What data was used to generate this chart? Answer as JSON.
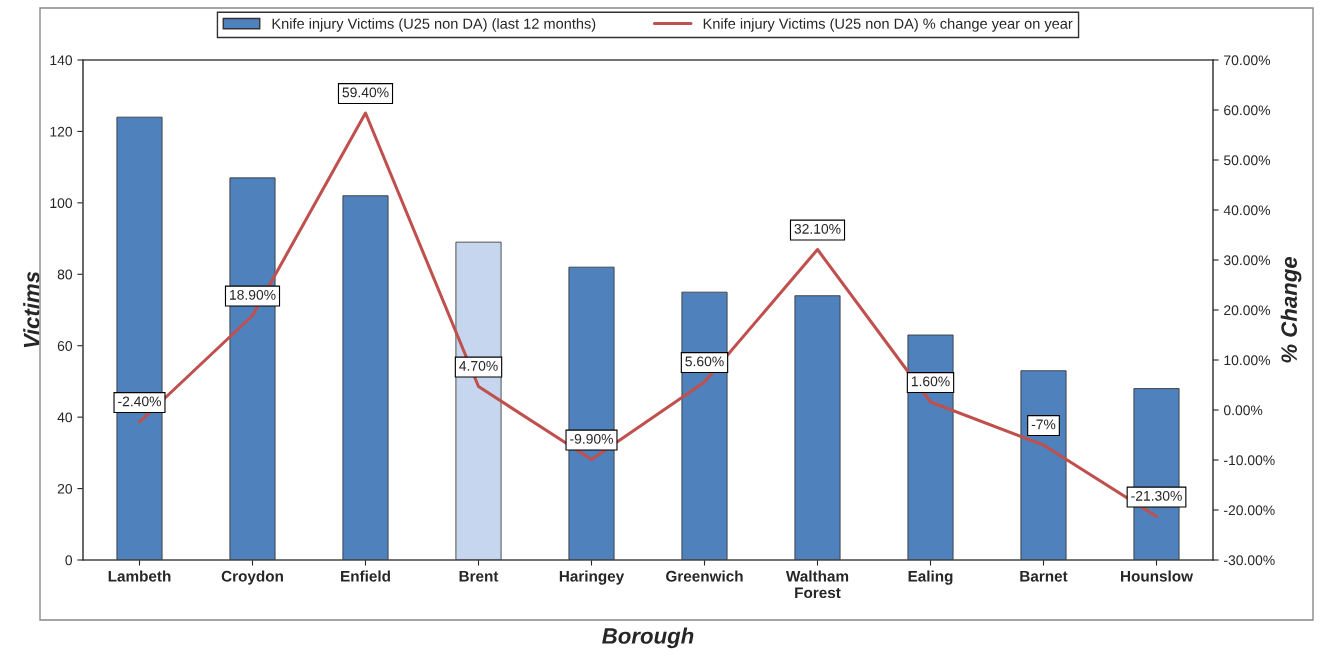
{
  "chart_data": {
    "type": "bar",
    "xlabel": "Borough",
    "ylabel": "Victims",
    "y2label": "% Change",
    "categories": [
      "Lambeth",
      "Croydon",
      "Enfield",
      "Brent",
      "Haringey",
      "Greenwich",
      "Waltham\nForest",
      "Ealing",
      "Barnet",
      "Hounslow"
    ],
    "series": [
      {
        "name": "Knife injury Victims (U25 non DA) (last 12 months)",
        "color": "#4f81bd",
        "colors": [
          "#4f81bd",
          "#4f81bd",
          "#4f81bd",
          "#c6d6ef",
          "#4f81bd",
          "#4f81bd",
          "#4f81bd",
          "#4f81bd",
          "#4f81bd",
          "#4f81bd"
        ],
        "values": [
          124,
          107,
          102,
          89,
          82,
          75,
          74,
          63,
          53,
          48
        ]
      },
      {
        "name": "Knife injury Victims (U25 non DA) % change year on year",
        "type": "line",
        "axis": "y2",
        "color": "#c0504d",
        "values": [
          -2.4,
          18.9,
          59.4,
          4.7,
          -9.9,
          5.6,
          32.1,
          1.6,
          -7,
          -21.3
        ],
        "value_labels": [
          "-2.40%",
          "18.90%",
          "59.40%",
          "4.70%",
          "-9.90%",
          "5.60%",
          "32.10%",
          "1.60%",
          "-7%",
          "-21.30%"
        ]
      }
    ],
    "ylim": [
      0,
      140
    ],
    "yticks": [
      0,
      20,
      40,
      60,
      80,
      100,
      120,
      140
    ],
    "y2lim": [
      -30,
      70
    ],
    "y2ticks": [
      {
        "value": -30,
        "label": "-30.00%"
      },
      {
        "value": -20,
        "label": "-20.00%"
      },
      {
        "value": -10,
        "label": "-10.00%"
      },
      {
        "value": 0,
        "label": "0.00%"
      },
      {
        "value": 10,
        "label": "10.00%"
      },
      {
        "value": 20,
        "label": "20.00%"
      },
      {
        "value": 30,
        "label": "30.00%"
      },
      {
        "value": 40,
        "label": "40.00%"
      },
      {
        "value": 50,
        "label": "50.00%"
      },
      {
        "value": 60,
        "label": "60.00%"
      },
      {
        "value": 70,
        "label": "70.00%"
      }
    ],
    "grid": false,
    "legend": "top",
    "marker": "none",
    "line_style": "solid"
  }
}
